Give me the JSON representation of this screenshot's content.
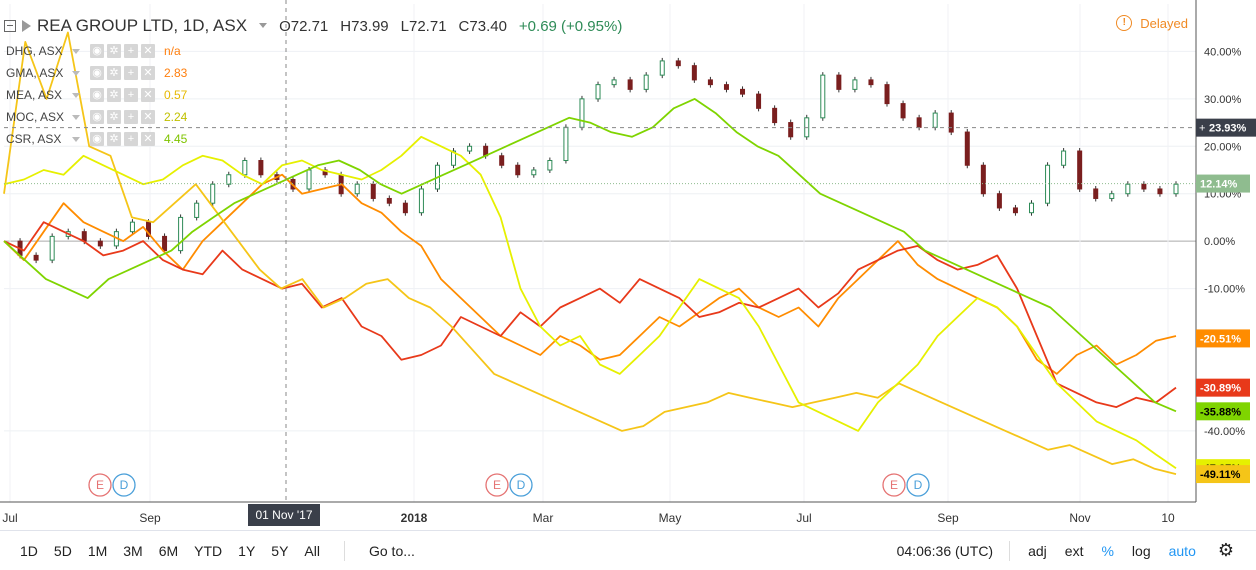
{
  "header": {
    "symbol": "REA GROUP LTD, 1D, ASX",
    "open": "O72.71",
    "high": "H73.99",
    "low": "L72.71",
    "close": "C73.40",
    "change": "+0.69 (+0.95%)",
    "delayed_label": "Delayed",
    "delayed_icon": "!"
  },
  "legend": [
    {
      "name": "DHG, ASX",
      "value": "n/a",
      "color": "#ff7f0e"
    },
    {
      "name": "GMA, ASX",
      "value": "2.83",
      "color": "#ff7f0e"
    },
    {
      "name": "MEA, ASX",
      "value": "0.57",
      "color": "#f5c518"
    },
    {
      "name": "MOC, ASX",
      "value": "2.24",
      "color": "#c0d000"
    },
    {
      "name": "CSR, ASX",
      "value": "4.45",
      "color": "#7fc400"
    }
  ],
  "price_axis": {
    "ticks": [
      "40.00%",
      "30.00%",
      "20.00%",
      "10.00%",
      "0.00%",
      "-10.00%",
      "-40.00%"
    ],
    "tick_values": [
      40,
      30,
      20,
      10,
      0,
      -10,
      -40
    ],
    "crosshair_label": "23.93%",
    "crosshair_value": 23.93,
    "badges": [
      {
        "label": "12.14%",
        "value": 12.14,
        "color": "#8fbc8f",
        "text_color": "#ffffff"
      },
      {
        "label": "-20.51%",
        "value": -20.51,
        "color": "#ff8c00",
        "text_color": "#ffffff"
      },
      {
        "label": "-30.89%",
        "value": -30.89,
        "color": "#e8391a",
        "text_color": "#ffffff"
      },
      {
        "label": "-35.88%",
        "value": -35.88,
        "color": "#7fd400",
        "text_color": "#000000"
      },
      {
        "label": "-47.87%",
        "value": -47.87,
        "color": "#e6f000",
        "text_color": "#000000"
      },
      {
        "label": "-49.11%",
        "value": -49.11,
        "color": "#f5c518",
        "text_color": "#000000"
      }
    ]
  },
  "time_axis": {
    "labels": [
      "Jul",
      "Sep",
      "2018",
      "Mar",
      "May",
      "Jul",
      "Sep",
      "Nov",
      "10"
    ],
    "crosshair_label": "01 Nov '17"
  },
  "events": [
    {
      "e": "E",
      "d": "D"
    },
    {
      "e": "E",
      "d": "D"
    },
    {
      "e": "E",
      "d": "D"
    }
  ],
  "chart_data": {
    "type": "line",
    "title": "REA GROUP LTD, 1D, ASX",
    "y_unit": "%",
    "ylim": [
      -55,
      50
    ],
    "x_labels": [
      "Jul",
      "Sep",
      "2018",
      "Mar",
      "May",
      "Jul",
      "Sep",
      "Nov",
      "10"
    ],
    "series": [
      {
        "name": "REA GROUP LTD",
        "style": "candlestick",
        "color": "#2e8b57",
        "values": [
          0,
          -3,
          -4,
          1,
          2,
          0,
          -1,
          2,
          4,
          1,
          -2,
          5,
          8,
          12,
          14,
          17,
          14,
          13,
          11,
          15,
          14,
          10,
          12,
          9,
          8,
          6,
          11,
          16,
          19,
          20,
          18,
          16,
          14,
          15,
          17,
          24,
          30,
          33,
          34,
          32,
          35,
          38,
          37,
          34,
          33,
          32,
          31,
          28,
          25,
          22,
          26,
          35,
          32,
          34,
          33,
          29,
          26,
          24,
          27,
          23,
          16,
          10,
          7,
          6,
          8,
          16,
          19,
          11,
          9,
          10,
          12,
          11,
          10,
          12
        ]
      },
      {
        "name": "DHG, ASX",
        "color": "#ff8c00",
        "values": [
          0,
          -4,
          2,
          8,
          4,
          2,
          0,
          3,
          -2,
          -6,
          0,
          4,
          8,
          12,
          14,
          10,
          11,
          12,
          8,
          6,
          2,
          -1,
          -8,
          -12,
          -16,
          -20,
          -22,
          -24,
          -20,
          -22,
          -25,
          -24,
          -20,
          -16,
          -18,
          -15,
          -12,
          -10,
          -14,
          -16,
          -14,
          -18,
          -12,
          -8,
          -4,
          0,
          -5,
          -8,
          -10,
          -12,
          -14,
          -18,
          -25,
          -28,
          -24,
          -22,
          -26,
          -24,
          -21,
          -20
        ]
      },
      {
        "name": "GMA, ASX",
        "color": "#e8391a",
        "values": [
          0,
          -2,
          4,
          2,
          0,
          -3,
          -2,
          0,
          -4,
          -6,
          -7,
          -2,
          -6,
          -8,
          -10,
          -9,
          -14,
          -12,
          -18,
          -20,
          -25,
          -24,
          -22,
          -16,
          -18,
          -20,
          -15,
          -18,
          -14,
          -12,
          -10,
          -13,
          -8,
          -10,
          -12,
          -16,
          -15,
          -13,
          -14,
          -12,
          -10,
          -14,
          -11,
          -6,
          -4,
          -2,
          -1,
          -4,
          -6,
          -5,
          -3,
          -10,
          -20,
          -30,
          -32,
          -34,
          -35,
          -33,
          -34,
          -30.89
        ]
      },
      {
        "name": "MEA, ASX",
        "color": "#f5c518",
        "values": [
          10,
          42,
          30,
          44,
          20,
          18,
          5,
          4,
          8,
          12,
          6,
          0,
          -6,
          -10,
          -8,
          -14,
          -12,
          -9,
          -8,
          -12,
          -14,
          -18,
          -23,
          -28,
          -30,
          -32,
          -34,
          -36,
          -38,
          -40,
          -39,
          -36,
          -35,
          -34,
          -32,
          -33,
          -34,
          -35,
          -34,
          -33,
          -32,
          -33,
          -30,
          -32,
          -34,
          -36,
          -38,
          -40,
          -42,
          -44,
          -43,
          -45,
          -47,
          -46,
          -48,
          -49.11
        ]
      },
      {
        "name": "MOC, ASX",
        "color": "#e6f000",
        "values": [
          12,
          13,
          15,
          14,
          18,
          16,
          14,
          12,
          13,
          16,
          18,
          17,
          14,
          12,
          16,
          17,
          15,
          14,
          13,
          15,
          18,
          22,
          20,
          18,
          14,
          5,
          -10,
          -18,
          -22,
          -20,
          -26,
          -28,
          -24,
          -20,
          -14,
          -8,
          -10,
          -12,
          -18,
          -26,
          -34,
          -36,
          -38,
          -40,
          -34,
          -30,
          -26,
          -20,
          -16,
          -12,
          -14,
          -18,
          -24,
          -30,
          -34,
          -38,
          -40,
          -42,
          -45,
          -47.87
        ]
      },
      {
        "name": "CSR, ASX",
        "color": "#7fd400",
        "values": [
          0,
          -4,
          -8,
          -10,
          -12,
          -8,
          -6,
          -4,
          -2,
          2,
          5,
          8,
          10,
          12,
          14,
          16,
          17,
          15,
          12,
          10,
          12,
          14,
          16,
          18,
          20,
          22,
          24,
          26,
          25,
          23,
          22,
          24,
          28,
          30,
          27,
          23,
          20,
          18,
          14,
          10,
          8,
          6,
          4,
          2,
          -2,
          -4,
          -6,
          -8,
          -10,
          -12,
          -14,
          -18,
          -22,
          -26,
          -30,
          -34,
          -35.88
        ]
      }
    ]
  }
}
